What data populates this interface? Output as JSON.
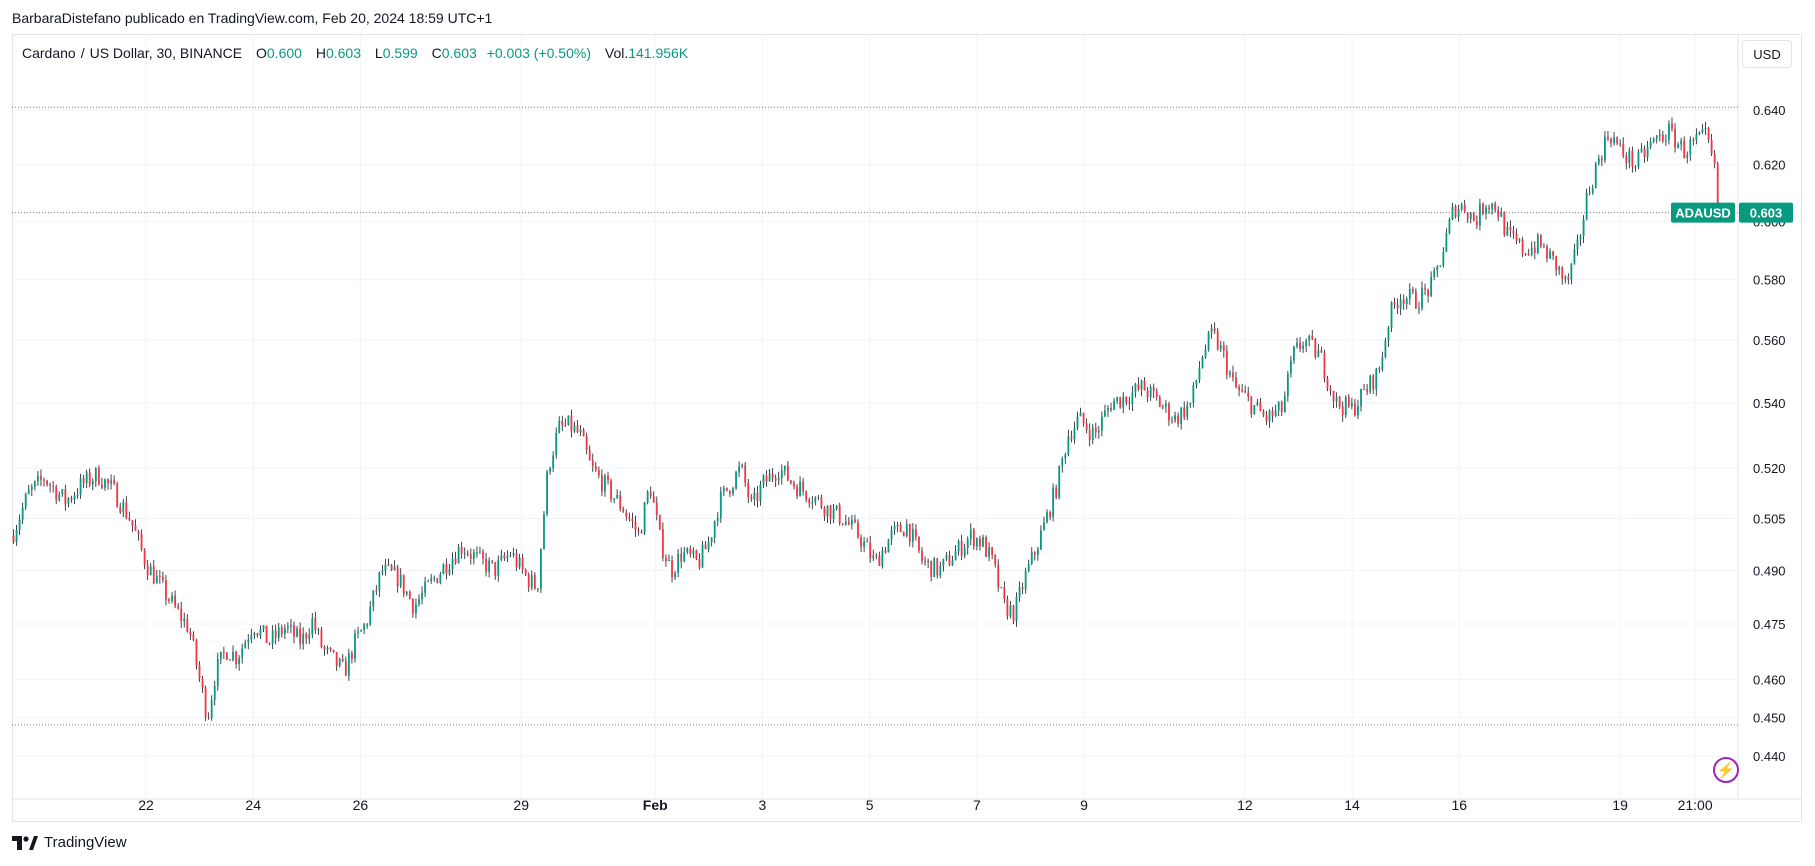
{
  "header": {
    "author": "BarbaraDistefano",
    "published_text": "publicado en TradingView.com, Feb 20, 2024 18:59 UTC+1"
  },
  "legend": {
    "symbol": "Cardano",
    "quote": "US Dollar",
    "interval": "30",
    "exchange": "BINANCE",
    "o_label": "O",
    "o_value": "0.600",
    "h_label": "H",
    "h_value": "0.603",
    "l_label": "L",
    "l_value": "0.599",
    "c_label": "C",
    "c_value": "0.603",
    "change": "+0.003 (+0.50%)",
    "vol_label": "Vol.",
    "vol_value": "141.956K"
  },
  "currency_button": "USD",
  "price_tag": {
    "symbol": "ADAUSD",
    "value": "0.603"
  },
  "footer": {
    "brand": "TradingView"
  },
  "colors": {
    "up": "#089981",
    "down": "#f23645",
    "wick": "#131722",
    "grid": "#f0f3fa",
    "axis": "#131722",
    "accent_purple": "#9c27b0"
  },
  "chart_data": {
    "type": "candlestick",
    "y_ticks": [
      0.44,
      0.45,
      0.46,
      0.475,
      0.49,
      0.505,
      0.52,
      0.54,
      0.56,
      0.58,
      0.6,
      0.62,
      0.64
    ],
    "y_tick_labels": [
      "0.440",
      "0.450",
      "0.460",
      "0.475",
      "0.490",
      "0.505",
      "0.520",
      "0.540",
      "0.560",
      "0.580",
      "0.600",
      "0.620",
      "0.640"
    ],
    "y_scale": "log",
    "ylim": [
      0.436,
      0.655
    ],
    "x_tick_labels": [
      "22",
      "24",
      "26",
      "29",
      "Feb",
      "3",
      "5",
      "7",
      "9",
      "12",
      "14",
      "16",
      "19",
      "21:00"
    ],
    "x_tick_positions": [
      2.5,
      4.5,
      6.5,
      9.5,
      12,
      14,
      16,
      18,
      20,
      23,
      25,
      27,
      30,
      31.4
    ],
    "x_range": [
      0,
      32.2
    ],
    "reference_lines": [
      0.641,
      0.603,
      0.448
    ],
    "last_price": 0.603,
    "path_anchors": [
      [
        0.0,
        0.5
      ],
      [
        0.3,
        0.512
      ],
      [
        0.6,
        0.517
      ],
      [
        1.0,
        0.51
      ],
      [
        1.3,
        0.515
      ],
      [
        1.6,
        0.518
      ],
      [
        1.9,
        0.513
      ],
      [
        2.2,
        0.505
      ],
      [
        2.5,
        0.492
      ],
      [
        2.8,
        0.485
      ],
      [
        3.1,
        0.478
      ],
      [
        3.3,
        0.474
      ],
      [
        3.5,
        0.46
      ],
      [
        3.65,
        0.45
      ],
      [
        3.8,
        0.462
      ],
      [
        4.0,
        0.468
      ],
      [
        4.2,
        0.466
      ],
      [
        4.5,
        0.475
      ],
      [
        4.8,
        0.47
      ],
      [
        5.1,
        0.474
      ],
      [
        5.4,
        0.47
      ],
      [
        5.6,
        0.476
      ],
      [
        5.8,
        0.468
      ],
      [
        6.0,
        0.465
      ],
      [
        6.2,
        0.462
      ],
      [
        6.4,
        0.47
      ],
      [
        6.6,
        0.475
      ],
      [
        6.9,
        0.49
      ],
      [
        7.2,
        0.488
      ],
      [
        7.5,
        0.48
      ],
      [
        7.8,
        0.486
      ],
      [
        8.1,
        0.492
      ],
      [
        8.4,
        0.497
      ],
      [
        8.7,
        0.493
      ],
      [
        9.0,
        0.49
      ],
      [
        9.3,
        0.495
      ],
      [
        9.6,
        0.488
      ],
      [
        9.8,
        0.485
      ],
      [
        10.0,
        0.52
      ],
      [
        10.2,
        0.532
      ],
      [
        10.4,
        0.533
      ],
      [
        10.6,
        0.53
      ],
      [
        10.8,
        0.52
      ],
      [
        11.1,
        0.514
      ],
      [
        11.4,
        0.508
      ],
      [
        11.7,
        0.5
      ],
      [
        11.9,
        0.515
      ],
      [
        12.1,
        0.498
      ],
      [
        12.3,
        0.49
      ],
      [
        12.5,
        0.495
      ],
      [
        12.8,
        0.492
      ],
      [
        13.0,
        0.498
      ],
      [
        13.2,
        0.51
      ],
      [
        13.4,
        0.515
      ],
      [
        13.6,
        0.52
      ],
      [
        13.8,
        0.508
      ],
      [
        14.0,
        0.515
      ],
      [
        14.3,
        0.52
      ],
      [
        14.6,
        0.515
      ],
      [
        14.9,
        0.512
      ],
      [
        15.2,
        0.508
      ],
      [
        15.5,
        0.505
      ],
      [
        15.8,
        0.5
      ],
      [
        16.1,
        0.492
      ],
      [
        16.4,
        0.5
      ],
      [
        16.7,
        0.503
      ],
      [
        17.0,
        0.492
      ],
      [
        17.3,
        0.49
      ],
      [
        17.6,
        0.495
      ],
      [
        17.9,
        0.5
      ],
      [
        18.1,
        0.498
      ],
      [
        18.3,
        0.492
      ],
      [
        18.5,
        0.48
      ],
      [
        18.7,
        0.478
      ],
      [
        18.9,
        0.488
      ],
      [
        19.1,
        0.496
      ],
      [
        19.3,
        0.505
      ],
      [
        19.5,
        0.515
      ],
      [
        19.7,
        0.53
      ],
      [
        19.9,
        0.535
      ],
      [
        20.2,
        0.53
      ],
      [
        20.5,
        0.54
      ],
      [
        20.8,
        0.542
      ],
      [
        21.1,
        0.545
      ],
      [
        21.4,
        0.54
      ],
      [
        21.7,
        0.535
      ],
      [
        22.0,
        0.54
      ],
      [
        22.2,
        0.555
      ],
      [
        22.4,
        0.562
      ],
      [
        22.6,
        0.555
      ],
      [
        22.8,
        0.545
      ],
      [
        23.1,
        0.54
      ],
      [
        23.4,
        0.535
      ],
      [
        23.7,
        0.538
      ],
      [
        23.9,
        0.555
      ],
      [
        24.1,
        0.56
      ],
      [
        24.4,
        0.555
      ],
      [
        24.7,
        0.54
      ],
      [
        25.0,
        0.538
      ],
      [
        25.3,
        0.545
      ],
      [
        25.5,
        0.55
      ],
      [
        25.7,
        0.568
      ],
      [
        25.9,
        0.575
      ],
      [
        26.2,
        0.573
      ],
      [
        26.5,
        0.578
      ],
      [
        26.7,
        0.59
      ],
      [
        26.9,
        0.605
      ],
      [
        27.1,
        0.605
      ],
      [
        27.3,
        0.6
      ],
      [
        27.5,
        0.607
      ],
      [
        27.7,
        0.605
      ],
      [
        27.9,
        0.595
      ],
      [
        28.2,
        0.59
      ],
      [
        28.5,
        0.592
      ],
      [
        28.8,
        0.585
      ],
      [
        29.0,
        0.578
      ],
      [
        29.2,
        0.59
      ],
      [
        29.4,
        0.61
      ],
      [
        29.6,
        0.622
      ],
      [
        29.8,
        0.632
      ],
      [
        30.0,
        0.625
      ],
      [
        30.3,
        0.62
      ],
      [
        30.6,
        0.628
      ],
      [
        30.9,
        0.632
      ],
      [
        31.2,
        0.625
      ],
      [
        31.4,
        0.628
      ],
      [
        31.6,
        0.63
      ],
      [
        31.75,
        0.62
      ],
      [
        31.85,
        0.603
      ]
    ]
  }
}
